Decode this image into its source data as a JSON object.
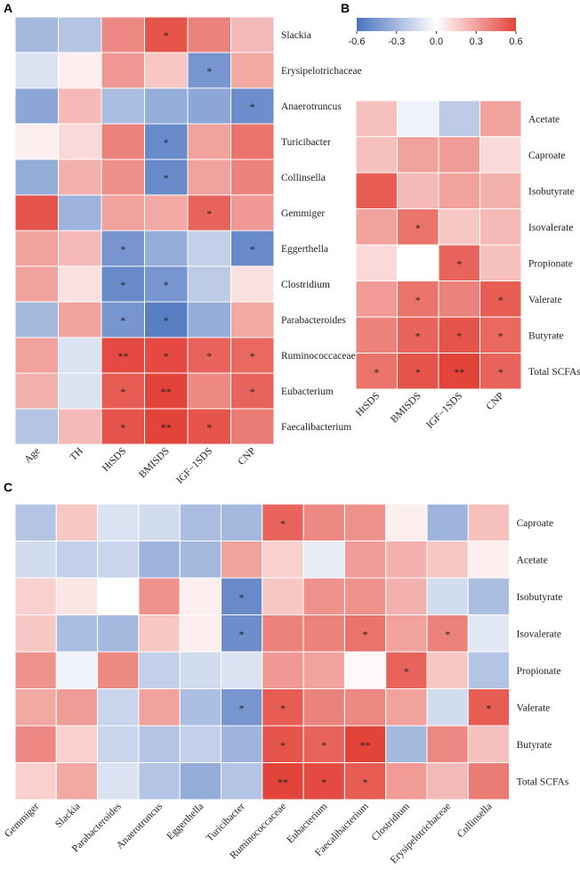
{
  "colors": {
    "negative": "#4A72BE",
    "neutral": "#FFFFFF",
    "positive": "#E3443A",
    "text": "#222222"
  },
  "chart_data": [
    {
      "panel": "A",
      "type": "heatmap",
      "columns": [
        "Age",
        "TH",
        "HtSDS",
        "BMISDS",
        "IGF−1SDS",
        "CNP"
      ],
      "rows": [
        "Slackia",
        "Erysipelotrichaceae",
        "Anaerotruncus",
        "Turicibacter",
        "Collinsella",
        "Gemmiger",
        "Eggerthella",
        "Clostridium",
        "Parabacteroides",
        "Ruminococcaceae",
        "Eubacterium",
        "Faecalibacterium"
      ],
      "values": [
        [
          -0.3,
          -0.25,
          0.38,
          0.55,
          0.4,
          0.22
        ],
        [
          -0.12,
          0.05,
          0.33,
          0.18,
          -0.45,
          0.28
        ],
        [
          -0.38,
          0.22,
          -0.28,
          -0.35,
          -0.38,
          -0.48
        ],
        [
          0.05,
          0.12,
          0.4,
          -0.5,
          0.3,
          0.45
        ],
        [
          -0.35,
          0.25,
          0.36,
          -0.5,
          0.3,
          0.4
        ],
        [
          0.55,
          -0.32,
          0.3,
          0.28,
          0.5,
          0.33
        ],
        [
          0.3,
          0.22,
          -0.45,
          -0.35,
          -0.2,
          -0.5
        ],
        [
          0.3,
          0.1,
          -0.5,
          -0.45,
          -0.22,
          0.1
        ],
        [
          -0.3,
          0.3,
          -0.45,
          -0.55,
          -0.35,
          0.28
        ],
        [
          0.3,
          -0.12,
          0.58,
          0.58,
          0.5,
          0.48
        ],
        [
          0.25,
          -0.12,
          0.52,
          0.6,
          0.38,
          0.5
        ],
        [
          -0.25,
          0.22,
          0.55,
          0.6,
          0.55,
          0.42
        ]
      ],
      "stars": [
        [
          "",
          "",
          "",
          "*",
          "",
          ""
        ],
        [
          "",
          "",
          "",
          "",
          "*",
          ""
        ],
        [
          "",
          "",
          "",
          "",
          "",
          "*"
        ],
        [
          "",
          "",
          "",
          "*",
          "",
          ""
        ],
        [
          "",
          "",
          "",
          "*",
          "",
          ""
        ],
        [
          "",
          "",
          "",
          "",
          "*",
          ""
        ],
        [
          "",
          "",
          "*",
          "",
          "",
          "*"
        ],
        [
          "",
          "",
          "*",
          "*",
          "",
          ""
        ],
        [
          "",
          "",
          "*",
          "*",
          "",
          ""
        ],
        [
          "",
          "",
          "**",
          "*",
          "*",
          "*"
        ],
        [
          "",
          "",
          "*",
          "**",
          "",
          "*"
        ],
        [
          "",
          "",
          "*",
          "**",
          "*",
          ""
        ]
      ]
    },
    {
      "panel": "B",
      "type": "heatmap",
      "columns": [
        "HtSDS",
        "BMISDS",
        "IGF−1SDS",
        "CNP"
      ],
      "rows": [
        "Acetate",
        "Caproate",
        "Isobutyrate",
        "Isovalerate",
        "Propionate",
        "Valerate",
        "Butyrate",
        "Total SCFAs"
      ],
      "values": [
        [
          0.2,
          -0.05,
          -0.22,
          0.3
        ],
        [
          0.2,
          0.3,
          0.32,
          0.12
        ],
        [
          0.52,
          0.22,
          0.3,
          0.25
        ],
        [
          0.3,
          0.45,
          0.18,
          0.22
        ],
        [
          0.12,
          0.0,
          0.5,
          0.2
        ],
        [
          0.32,
          0.45,
          0.4,
          0.52
        ],
        [
          0.4,
          0.5,
          0.55,
          0.48
        ],
        [
          0.45,
          0.55,
          0.6,
          0.5
        ]
      ],
      "stars": [
        [
          "",
          "",
          "",
          ""
        ],
        [
          "",
          "",
          "",
          ""
        ],
        [
          "",
          "",
          "",
          ""
        ],
        [
          "",
          "*",
          "",
          ""
        ],
        [
          "",
          "",
          "*",
          ""
        ],
        [
          "",
          "*",
          "",
          "*"
        ],
        [
          "",
          "*",
          "*",
          "*"
        ],
        [
          "*",
          "*",
          "**",
          "*"
        ]
      ]
    },
    {
      "panel": "C",
      "type": "heatmap",
      "columns": [
        "Gemmiger",
        "Slackia",
        "Parabacteroides",
        "Anaerotruncus",
        "Eggerthella",
        "Turicibacter",
        "Ruminococcaceae",
        "Eubacterium",
        "Faecalibacterium",
        "Clostridium",
        "Erysipelotrichaceae",
        "Collinsella"
      ],
      "rows": [
        "Caproate",
        "Acetate",
        "Isobutyrate",
        "Isovalerate",
        "Propionate",
        "Valerate",
        "Butyrate",
        "Total SCFAs"
      ],
      "values": [
        [
          -0.25,
          0.18,
          -0.12,
          -0.15,
          -0.28,
          -0.3,
          0.5,
          0.38,
          0.35,
          0.05,
          -0.32,
          0.2
        ],
        [
          -0.15,
          -0.2,
          -0.18,
          -0.32,
          -0.3,
          0.3,
          0.15,
          -0.08,
          0.32,
          0.25,
          0.18,
          0.05
        ],
        [
          0.15,
          0.08,
          0.0,
          0.35,
          0.05,
          -0.5,
          0.18,
          0.35,
          0.35,
          0.25,
          -0.15,
          -0.28
        ],
        [
          0.18,
          -0.28,
          -0.3,
          0.18,
          0.05,
          -0.48,
          0.4,
          0.4,
          0.45,
          0.3,
          0.4,
          -0.1
        ],
        [
          0.35,
          -0.05,
          0.38,
          -0.2,
          -0.15,
          -0.12,
          0.33,
          0.3,
          0.02,
          0.5,
          0.18,
          -0.25
        ],
        [
          0.28,
          0.32,
          -0.18,
          0.3,
          -0.28,
          -0.45,
          0.52,
          0.4,
          0.38,
          0.3,
          -0.15,
          0.52
        ],
        [
          0.38,
          0.15,
          -0.18,
          -0.25,
          -0.2,
          -0.32,
          0.55,
          0.5,
          0.6,
          -0.3,
          0.38,
          0.2
        ],
        [
          0.15,
          0.28,
          -0.12,
          -0.25,
          -0.35,
          -0.25,
          0.6,
          0.58,
          0.52,
          0.32,
          0.22,
          0.42
        ]
      ],
      "stars": [
        [
          "",
          "",
          "",
          "",
          "",
          "",
          "*",
          "",
          "",
          "",
          "",
          ""
        ],
        [
          "",
          "",
          "",
          "",
          "",
          "",
          "",
          "",
          "",
          "",
          "",
          ""
        ],
        [
          "",
          "",
          "",
          "",
          "",
          "*",
          "",
          "",
          "",
          "",
          "",
          ""
        ],
        [
          "",
          "",
          "",
          "",
          "",
          "*",
          "",
          "",
          "*",
          "",
          "*",
          ""
        ],
        [
          "",
          "",
          "",
          "",
          "",
          "",
          "",
          "",
          "",
          "*",
          "",
          ""
        ],
        [
          "",
          "",
          "",
          "",
          "",
          "*",
          "*",
          "",
          "",
          "",
          "",
          "*"
        ],
        [
          "",
          "",
          "",
          "",
          "",
          "",
          "*",
          "*",
          "**",
          "",
          "",
          ""
        ],
        [
          "",
          "",
          "",
          "",
          "",
          "",
          "**",
          "*",
          "*",
          "",
          "",
          ""
        ]
      ]
    }
  ],
  "legend": {
    "min": -0.6,
    "max": 0.6,
    "ticks": [
      "-0.6",
      "-0.3",
      "0.0",
      "0.3",
      "0.6"
    ]
  }
}
